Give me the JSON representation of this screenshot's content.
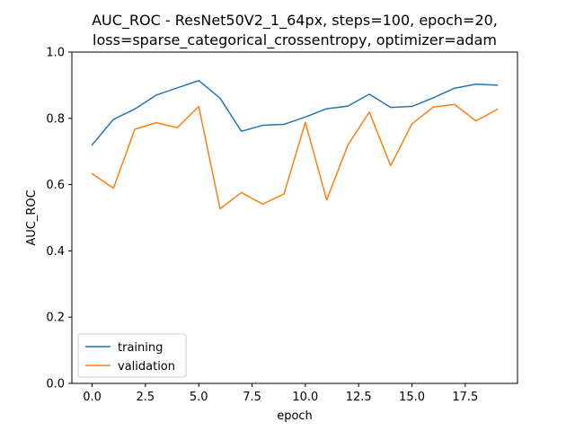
{
  "chart_data": {
    "type": "line",
    "title_line1": "AUC_ROC - ResNet50V2_1_64px, steps=100, epoch=20,",
    "title_line2": "loss=sparse_categorical_crossentropy, optimizer=adam",
    "xlabel": "epoch",
    "ylabel": "AUC_ROC",
    "xlim": [
      -0.95,
      19.95
    ],
    "ylim": [
      0,
      1
    ],
    "xticks": [
      0,
      2.5,
      5,
      7.5,
      10,
      12.5,
      15,
      17.5
    ],
    "xtick_labels": [
      "0.0",
      "2.5",
      "5.0",
      "7.5",
      "10.0",
      "12.5",
      "15.0",
      "17.5"
    ],
    "yticks": [
      0,
      0.2,
      0.4,
      0.6,
      0.8,
      1.0
    ],
    "ytick_labels": [
      "0.0",
      "0.2",
      "0.4",
      "0.6",
      "0.8",
      "1.0"
    ],
    "grid": false,
    "legend_position": "lower-left",
    "x": [
      0,
      1,
      2,
      3,
      4,
      5,
      6,
      7,
      8,
      9,
      10,
      11,
      12,
      13,
      14,
      15,
      16,
      17,
      18,
      19
    ],
    "series": [
      {
        "name": "training",
        "color": "#1f77b4",
        "values": [
          0.72,
          0.797,
          0.828,
          0.87,
          0.892,
          0.914,
          0.861,
          0.761,
          0.779,
          0.782,
          0.804,
          0.829,
          0.837,
          0.873,
          0.833,
          0.836,
          0.862,
          0.891,
          0.903,
          0.9
        ]
      },
      {
        "name": "validation",
        "color": "#ff7f0e",
        "values": [
          0.633,
          0.589,
          0.767,
          0.787,
          0.772,
          0.836,
          0.527,
          0.576,
          0.541,
          0.572,
          0.788,
          0.554,
          0.72,
          0.819,
          0.657,
          0.783,
          0.834,
          0.842,
          0.792,
          0.827
        ]
      }
    ]
  }
}
